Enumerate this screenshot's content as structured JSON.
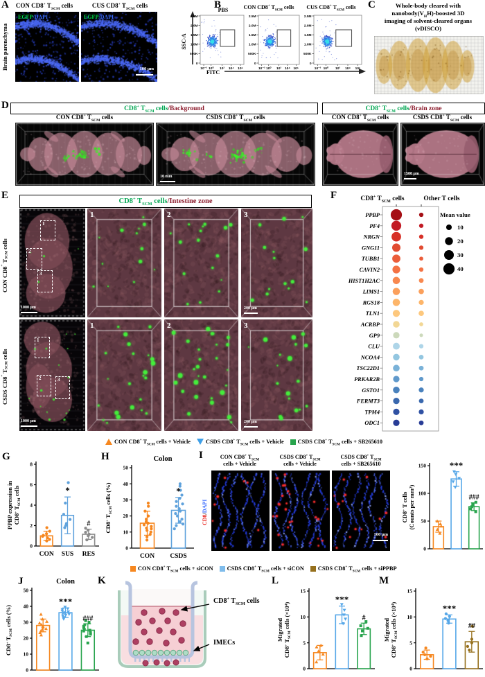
{
  "figure": {
    "panelA": {
      "label": "A",
      "side_label": "Brain parenchyma",
      "titles": [
        "CON CD8^{+} T_{SCM} cells",
        "CUS CD8^{+} T_{SCM} cells"
      ],
      "overlay": {
        "egfp": "EGFP",
        "sep": "/",
        "dapi": "DAPI"
      },
      "scale_bar": "100 μm"
    },
    "panelB": {
      "label": "B",
      "plot_titles": [
        "PBS",
        "CON CD8^{+} T_{SCM} cells",
        "CUS CD8^{+} T_{SCM} cells"
      ],
      "y_axis": "SSC-A",
      "x_axis": "FITC",
      "y_ticks": [
        "2.5M",
        "2.0M",
        "1.5M",
        "1.0M",
        "500K",
        "0"
      ],
      "x_ticks": [
        "10⁻³",
        "10⁰",
        "10³",
        "10⁴",
        "10⁵"
      ]
    },
    "panelC": {
      "label": "C",
      "title_lines": [
        "Whole-body cleared with",
        "nanobody(V_{H}H)-boosted 3D",
        "imaging of solvent-cleared organs",
        "(vDISCO)"
      ]
    },
    "panelD": {
      "label": "D",
      "header1": {
        "green": "CD8^{+} T_{SCM} cells",
        "red": "/Background"
      },
      "header2": {
        "green": "CD8^{+} T_{SCM} cells",
        "red": "/Brain zone"
      },
      "bg_titles": [
        "CON CD8^{+} T_{SCM} cells",
        "CSDS CD8^{+} T_{SCM} cells"
      ],
      "brain_titles": [
        "CON CD8^{+} T_{SCM} cells",
        "CSDS CD8^{+} T_{SCM} cells"
      ],
      "scale_bg": "10 mm",
      "scale_brain": "1500 μm"
    },
    "panelE": {
      "label": "E",
      "header": {
        "green": "CD8^{+} T_{SCM} cells",
        "red": "/Intestine zone"
      },
      "row_labels": [
        "CON CD8^{+} T_{SCM} cells",
        "CSDS CD8^{+} T_{SCM} cells"
      ],
      "inset_numbers": [
        "1",
        "2",
        "3"
      ],
      "scale_main": "1000 μm",
      "scale_zoom": "200 μm"
    },
    "panelF": {
      "label": "F",
      "col_headers": [
        "CD8^{+} T_{SCM} cells",
        "Other T cells"
      ],
      "legend_title": "Mean value"
    },
    "panelG": {
      "label": "G"
    },
    "panelH": {
      "label": "H"
    },
    "panelI": {
      "label": "I",
      "img_titles": [
        [
          "CON CD8^{+} T_{SCM}",
          "cells + Vehicle"
        ],
        [
          "CSDS CD8^{+} T_{SCM}",
          "cells + Vehicle"
        ],
        [
          "CSDS CD8^{+} T_{SCM}",
          "cells + SB265610"
        ]
      ],
      "side_label": {
        "red": "CD8",
        "sep": "/",
        "blue": "DAPI"
      },
      "scale_bar": "100 μm"
    },
    "panelJ": {
      "label": "J"
    },
    "panelK": {
      "label": "K",
      "cell_label": "CD8^{+} T_{SCM} cells",
      "imec_label": "IMECs"
    },
    "panelL": {
      "label": "L"
    },
    "panelM": {
      "label": "M"
    },
    "legend1": {
      "items": [
        {
          "marker": "triangle-up",
          "color": "#F6871F",
          "label": "CON CD8^{+} T_{SCM} cells + Vehicle"
        },
        {
          "marker": "triangle-down",
          "color": "#3FA0E8",
          "label": "CSDS CD8^{+} T_{SCM} cells + Vehicle"
        },
        {
          "marker": "square",
          "color": "#28A44D",
          "label": "CSDS CD8^{+} T_{SCM} cells + SB265610"
        }
      ]
    },
    "legend2": {
      "items": [
        {
          "marker": "square",
          "color": "#F6871F",
          "label": "CON CD8^{+} T_{SCM} cells + siCON"
        },
        {
          "marker": "square",
          "color": "#7FBCEB",
          "label": "CSDS CD8^{+} T_{SCM} cells + siCON"
        },
        {
          "marker": "square",
          "color": "#96701D",
          "label": "CSDS CD8^{+} T_{SCM} cells + siPPBP"
        }
      ]
    }
  },
  "chart_data": [
    {
      "id": "G",
      "type": "bar",
      "title": "",
      "ylabel_lines": [
        "PPBP expression in",
        "CD8^{+} T_{SCM} cells"
      ],
      "ylim": [
        0,
        8
      ],
      "yticks": [
        0,
        2,
        4,
        6,
        8
      ],
      "categories": [
        "CON",
        "SUS",
        "RES"
      ],
      "bars": [
        {
          "mean": 1.0,
          "err": 0.45,
          "color": "#F6871F",
          "sig": "",
          "marker": "circle",
          "points": [
            0.5,
            0.65,
            0.8,
            0.95,
            1.05,
            1.2,
            1.45,
            1.8
          ]
        },
        {
          "mean": 3.0,
          "err": 1.8,
          "color": "#5FA2DC",
          "sig": "*",
          "marker": "circle",
          "points": [
            1.8,
            2.0,
            2.2,
            2.6,
            3.1,
            4.2,
            6.2
          ]
        },
        {
          "mean": 1.15,
          "err": 0.5,
          "color": "#8C8C8C",
          "sig": "#",
          "marker": "circle",
          "points": [
            0.6,
            0.85,
            1.0,
            1.15,
            1.35,
            1.55,
            1.75
          ]
        }
      ]
    },
    {
      "id": "H",
      "type": "bar",
      "title": "Colon",
      "ylabel_lines": [
        "CD8^{+} T_{SCM} cells (%)"
      ],
      "ylim": [
        0,
        50
      ],
      "yticks": [
        0,
        10,
        20,
        30,
        40,
        50
      ],
      "categories": [
        "CON",
        "CSDS"
      ],
      "bars": [
        {
          "mean": 15.5,
          "err": 7.5,
          "color": "#F6871F",
          "sig": "",
          "marker": "circle",
          "points": [
            5,
            7,
            8.5,
            10,
            11,
            12,
            12.5,
            13.5,
            14.5,
            15.5,
            16.5,
            18,
            20,
            23,
            26,
            28
          ]
        },
        {
          "mean": 23.5,
          "err": 8,
          "color": "#5FA2DC",
          "sig": "*",
          "marker": "circle",
          "points": [
            12,
            14,
            15,
            16.5,
            18,
            20,
            21.5,
            23,
            24.5,
            26,
            27.5,
            29,
            31,
            33,
            36,
            38.5,
            40
          ]
        }
      ]
    },
    {
      "id": "I",
      "type": "bar",
      "title": "",
      "ylabel_lines": [
        "CD8^{+} T cells",
        "(Counts per mm^{2})"
      ],
      "ylim": [
        0,
        150
      ],
      "yticks": [
        0,
        50,
        100,
        150
      ],
      "categories": [],
      "bars": [
        {
          "mean": 40,
          "err": 10,
          "color": "#F6871F",
          "sig": "",
          "marker": "triangle-up",
          "points": [
            28,
            35,
            41,
            45,
            50
          ]
        },
        {
          "mean": 126,
          "err": 13,
          "color": "#56A7E8",
          "sig": "***",
          "marker": "triangle-down",
          "points": [
            111,
            121,
            127,
            134,
            139
          ]
        },
        {
          "mean": 76,
          "err": 7,
          "color": "#28A44D",
          "sig": "###",
          "marker": "square",
          "points": [
            67,
            72,
            76,
            80,
            84
          ]
        }
      ]
    },
    {
      "id": "J",
      "type": "bar",
      "title": "Colon",
      "ylabel_lines": [
        "CD8^{+} T_{SCM} cells (%)"
      ],
      "ylim": [
        0,
        50
      ],
      "yticks": [
        0,
        10,
        20,
        30,
        40,
        50
      ],
      "categories": [],
      "bars": [
        {
          "mean": 28,
          "err": 4,
          "color": "#F6871F",
          "sig": "",
          "marker": "triangle-up",
          "points": [
            22,
            23.5,
            24.5,
            25.5,
            26,
            27,
            27.5,
            28.5,
            29.5,
            30.5,
            32,
            35
          ]
        },
        {
          "mean": 36,
          "err": 3,
          "color": "#56A7E8",
          "sig": "***",
          "marker": "triangle-down",
          "points": [
            32,
            33,
            34,
            34.5,
            35,
            35.5,
            36,
            36.5,
            37,
            38,
            38.5,
            39.5
          ]
        },
        {
          "mean": 25,
          "err": 4,
          "color": "#28A44D",
          "sig": "###",
          "marker": "square",
          "points": [
            17,
            21,
            22.5,
            23.5,
            24.5,
            25,
            25.5,
            26.5,
            27.5,
            28.5,
            30,
            31
          ]
        }
      ]
    },
    {
      "id": "L",
      "type": "bar",
      "title": "",
      "ylabel_lines": [
        "Migrated",
        "CD8^{+} T_{SCM} cells (×10^{4})"
      ],
      "ylim": [
        0,
        15
      ],
      "yticks": [
        0,
        5,
        10,
        15
      ],
      "categories": [],
      "bars": [
        {
          "mean": 3.1,
          "err": 1.4,
          "color": "#F6871F",
          "sig": "",
          "marker": "triangle-up",
          "points": [
            1.3,
            2.8,
            3.4,
            4.2,
            4.5
          ]
        },
        {
          "mean": 10.4,
          "err": 1.7,
          "color": "#56A7E8",
          "sig": "***",
          "marker": "triangle-down",
          "points": [
            8.7,
            9.6,
            10.4,
            11.3,
            12.4
          ]
        },
        {
          "mean": 7.7,
          "err": 1.1,
          "color": "#28A44D",
          "sig": "#",
          "marker": "square",
          "points": [
            6.4,
            7.3,
            7.8,
            8.3,
            9.1
          ]
        }
      ]
    },
    {
      "id": "M",
      "type": "bar",
      "title": "",
      "ylabel_lines": [
        "Migrated",
        "CD8^{+} T_{SCM} cells (×10^{4})"
      ],
      "ylim": [
        0,
        15
      ],
      "yticks": [
        0,
        5,
        10,
        15
      ],
      "categories": [],
      "bars": [
        {
          "mean": 2.7,
          "err": 0.9,
          "color": "#F6871F",
          "sig": "",
          "marker": "circle",
          "points": [
            1.9,
            2.4,
            2.7,
            3.2,
            4.0
          ]
        },
        {
          "mean": 9.6,
          "err": 0.8,
          "color": "#56A7E8",
          "sig": "***",
          "marker": "circle",
          "points": [
            8.8,
            9.3,
            9.7,
            10.1,
            10.6
          ]
        },
        {
          "mean": 5.2,
          "err": 2.0,
          "color": "#96701D",
          "sig": "##",
          "marker": "circle",
          "points": [
            3.6,
            4.3,
            5.0,
            5.7,
            8.2
          ]
        }
      ]
    },
    {
      "id": "F",
      "type": "dotplot",
      "columns": [
        "CD8+ TSCM cells",
        "Other T cells"
      ],
      "legend_title": "Mean value",
      "legend_sizes": [
        10,
        20,
        30,
        40
      ],
      "genes": [
        {
          "name": "PPBP",
          "v1": 40,
          "v2": 6,
          "color": "#A50F15"
        },
        {
          "name": "PF4",
          "v1": 31,
          "v2": 6,
          "color": "#C21A24"
        },
        {
          "name": "NRGN",
          "v1": 29,
          "v2": 6,
          "color": "#D73027"
        },
        {
          "name": "GNG11",
          "v1": 22,
          "v2": 6,
          "color": "#E14B31"
        },
        {
          "name": "TUBB1",
          "v1": 21,
          "v2": 5,
          "color": "#EB5D3A"
        },
        {
          "name": "CAVIN2",
          "v1": 19,
          "v2": 6,
          "color": "#F47244"
        },
        {
          "name": "HIST1H2AC",
          "v1": 17,
          "v2": 7,
          "color": "#F8884F"
        },
        {
          "name": "LIMS1",
          "v1": 17,
          "v2": 9,
          "color": "#FBA05C"
        },
        {
          "name": "RGS18",
          "v1": 17,
          "v2": 8,
          "color": "#FDB569"
        },
        {
          "name": "TLN1",
          "v1": 16,
          "v2": 9,
          "color": "#FDC87E"
        },
        {
          "name": "ACRBP",
          "v1": 14,
          "v2": 5,
          "color": "#F2D795"
        },
        {
          "name": "GP9",
          "v1": 13,
          "v2": 4,
          "color": "#CCD9BB"
        },
        {
          "name": "CLU",
          "v1": 15,
          "v2": 6,
          "color": "#AED5E8"
        },
        {
          "name": "NCOA4",
          "v1": 14,
          "v2": 7,
          "color": "#93C6E0"
        },
        {
          "name": "TSC22D1",
          "v1": 14,
          "v2": 7,
          "color": "#7AB2D8"
        },
        {
          "name": "PRKAR2B",
          "v1": 13,
          "v2": 6,
          "color": "#6099CB"
        },
        {
          "name": "GSTO1",
          "v1": 14,
          "v2": 8,
          "color": "#4A82BD"
        },
        {
          "name": "FERMT3",
          "v1": 13,
          "v2": 7,
          "color": "#3A68AE"
        },
        {
          "name": "TPM4",
          "v1": 13,
          "v2": 8,
          "color": "#2F51A3"
        },
        {
          "name": "ODC1",
          "v1": 13,
          "v2": 7,
          "color": "#283C96"
        }
      ]
    }
  ]
}
